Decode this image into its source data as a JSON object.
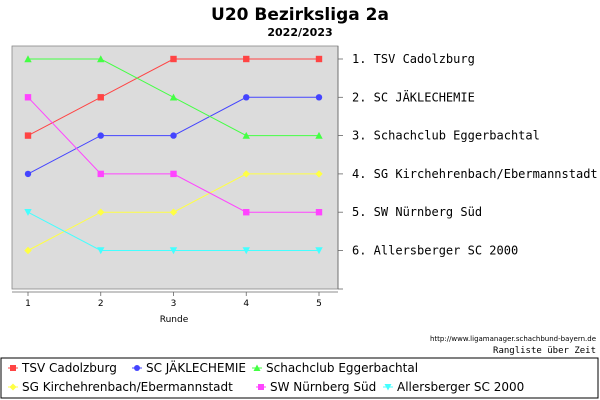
{
  "chart_data": {
    "type": "line",
    "title": "U20 Bezirksliga 2a",
    "subtitle": "2022/2023",
    "xlabel": "Runde",
    "x": [
      1,
      2,
      3,
      4,
      5
    ],
    "ylim": [
      6.5,
      0.5
    ],
    "y_inverted": true,
    "grid": false,
    "legend_position": "bottom",
    "rank_labels": [
      "1. TSV Cadolzburg",
      "2. SC JÄKLECHEMIE",
      "3. Schachclub Eggerbachtal",
      "4. SG Kirchehrenbach/Ebermannstadt",
      "5. SW Nürnberg Süd",
      "6. Allersberger SC 2000"
    ],
    "series": [
      {
        "name": "TSV Cadolzburg",
        "color": "#ff4444",
        "marker": "square",
        "values": [
          3,
          2,
          1,
          1,
          1
        ]
      },
      {
        "name": "SC JÄKLECHEMIE",
        "color": "#4444ff",
        "marker": "circle",
        "values": [
          4,
          3,
          3,
          2,
          2
        ]
      },
      {
        "name": "Schachclub Eggerbachtal",
        "color": "#44ff44",
        "marker": "triangle-up",
        "values": [
          1,
          1,
          2,
          3,
          3
        ]
      },
      {
        "name": "SG Kirchehrenbach/Ebermannstadt",
        "color": "#ffff44",
        "marker": "diamond",
        "values": [
          6,
          5,
          5,
          4,
          4
        ]
      },
      {
        "name": "SW Nürnberg Süd",
        "color": "#ff44ff",
        "marker": "square",
        "values": [
          2,
          4,
          4,
          5,
          5
        ]
      },
      {
        "name": "Allersberger SC 2000",
        "color": "#44ffff",
        "marker": "triangle-down",
        "values": [
          5,
          6,
          6,
          6,
          6
        ]
      }
    ]
  },
  "footer": {
    "url": "http://www.ligamanager.schachbund-bayern.de",
    "note": "Rangliste über Zeit"
  },
  "colors": {
    "plot_background": "#dcdcdc"
  }
}
